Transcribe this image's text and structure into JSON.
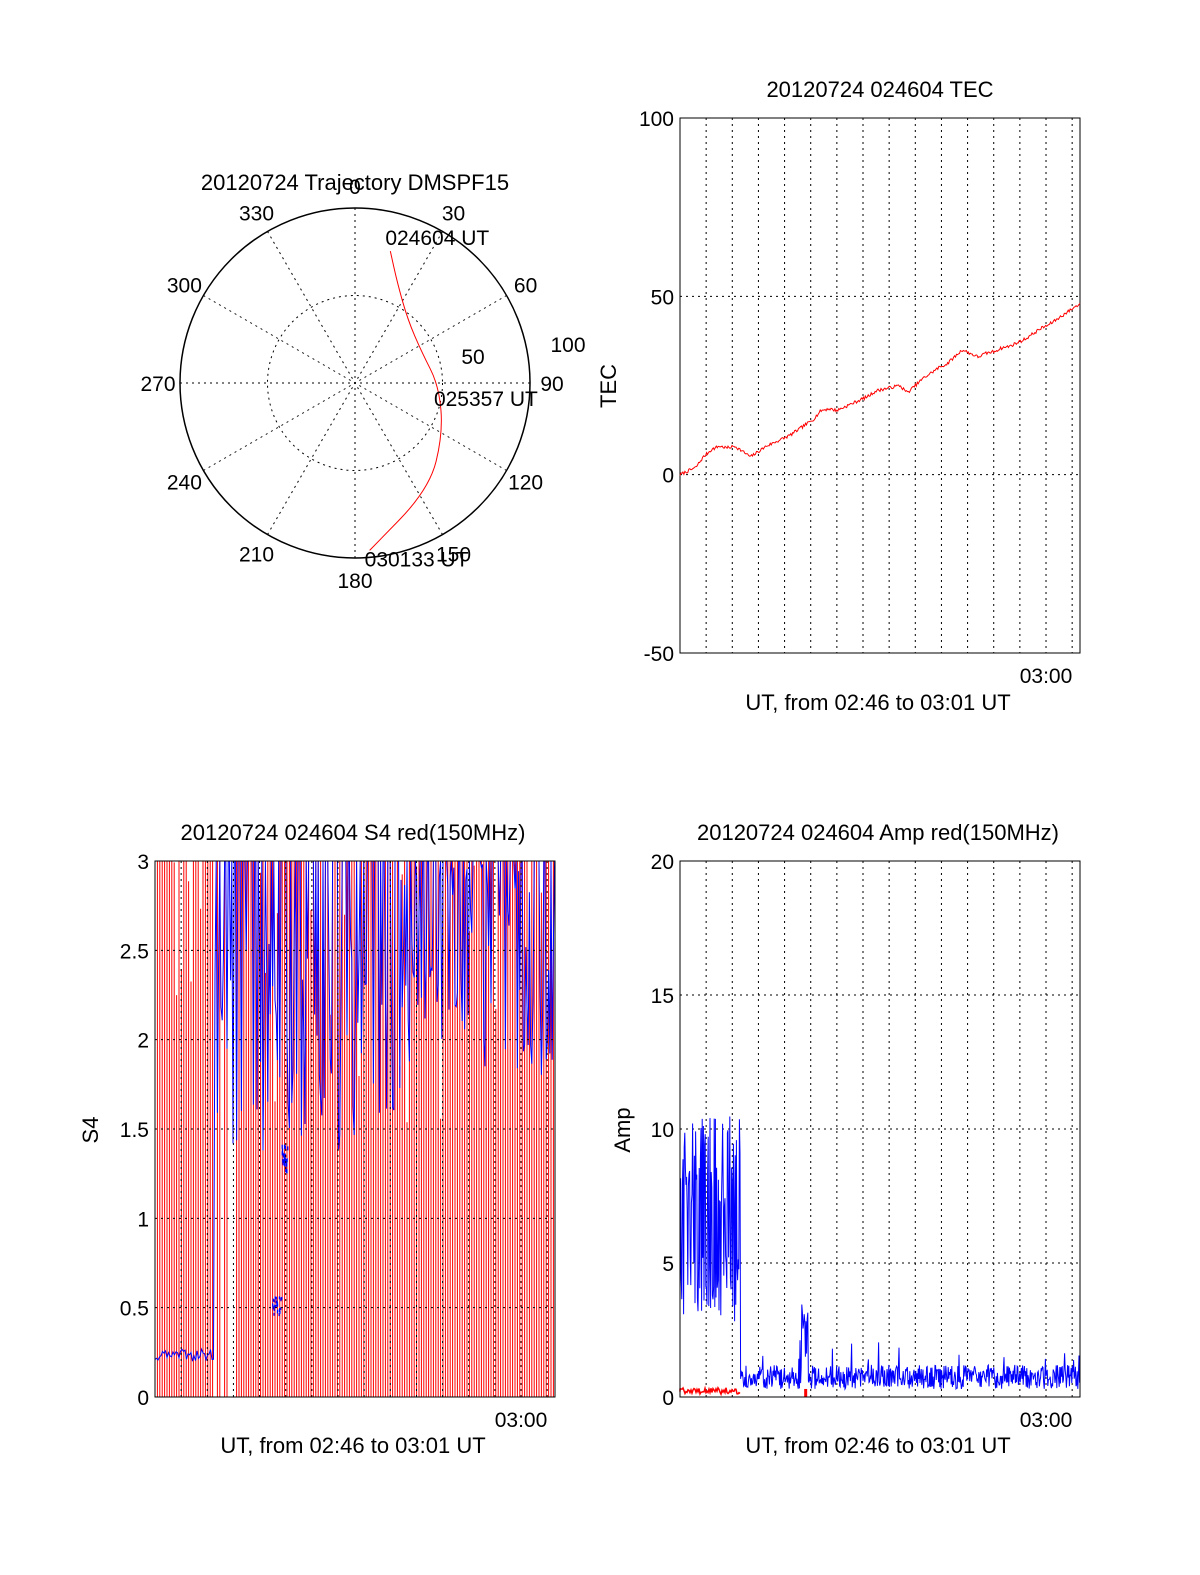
{
  "chart_data": [
    {
      "type": "polar",
      "title": "20120724 Trajectory DMSPF15",
      "angle_labels": [
        "0",
        "30",
        "60",
        "90",
        "120",
        "150",
        "180",
        "210",
        "240",
        "270",
        "300",
        "330"
      ],
      "radius_labels": [
        "50",
        "100"
      ],
      "radius_range": [
        0,
        100
      ],
      "grid": true,
      "series": [
        {
          "color": "#ff0000",
          "points": [
            {
              "az": 15,
              "r": 78,
              "label": "024604 UT"
            },
            {
              "az": 23,
              "r": 62
            },
            {
              "az": 40,
              "r": 47
            },
            {
              "az": 65,
              "r": 42
            },
            {
              "az": 92,
              "r": 48,
              "label": "025357 UT"
            },
            {
              "az": 120,
              "r": 58
            },
            {
              "az": 145,
              "r": 74
            },
            {
              "az": 175,
              "r": 96,
              "label": "030133 UT"
            }
          ]
        }
      ]
    },
    {
      "type": "line",
      "title": "20120724 024604 TEC",
      "xlabel": "UT, from 02:46 to 03:01 UT",
      "ylabel": "TEC",
      "xlim": [
        0,
        15.3
      ],
      "ylim": [
        -50,
        100
      ],
      "yticks": [
        "-50",
        "0",
        "50",
        "100"
      ],
      "xtick_labels": [
        {
          "x": 14,
          "label": "03:00"
        }
      ],
      "grid": true,
      "series": [
        {
          "color": "#ff0000",
          "x": [
            0.0,
            0.3,
            0.6,
            0.9,
            1.2,
            1.5,
            1.8,
            2.1,
            2.4,
            2.7,
            3.0,
            3.3,
            3.6,
            3.9,
            4.2,
            4.5,
            4.8,
            5.1,
            5.4,
            5.7,
            6.0,
            6.3,
            6.6,
            6.9,
            7.2,
            7.5,
            7.8,
            8.1,
            8.4,
            8.7,
            9.0,
            9.3,
            9.6,
            9.9,
            10.2,
            10.5,
            10.8,
            11.1,
            11.4,
            11.7,
            12.0,
            12.3,
            12.6,
            12.9,
            13.2,
            13.5,
            13.8,
            14.1,
            14.4,
            14.7,
            15.0,
            15.3
          ],
          "y": [
            0,
            1,
            2,
            5,
            7,
            8,
            7.5,
            8,
            6.5,
            5,
            6.5,
            8,
            9,
            10,
            11,
            12.5,
            14,
            15.5,
            18,
            18.5,
            18,
            19,
            20,
            21,
            22,
            23.5,
            24,
            24.5,
            25,
            23,
            25,
            27,
            28.5,
            30,
            31,
            33,
            35,
            34,
            33,
            34,
            34.5,
            35.5,
            36,
            37,
            38,
            39.5,
            41,
            42,
            43.5,
            45,
            46.5,
            48
          ]
        }
      ]
    },
    {
      "type": "line",
      "title": "20120724 024604 S4 red(150MHz)",
      "xlabel": "UT, from 02:46 to 03:01 UT",
      "ylabel": "S4",
      "xlim": [
        0,
        15.3
      ],
      "ylim": [
        0,
        3
      ],
      "yticks": [
        "0",
        "0.5",
        "1",
        "1.5",
        "2",
        "2.5",
        "3"
      ],
      "xtick_labels": [
        {
          "x": 14,
          "label": "03:00"
        }
      ],
      "grid": true,
      "series": [
        {
          "color": "#ff0000",
          "description_values": [
            0,
            3
          ]
        },
        {
          "color": "#0000ff",
          "description_values": [
            0.22,
            3
          ]
        }
      ]
    },
    {
      "type": "line",
      "title": "20120724 024604 Amp red(150MHz)",
      "xlabel": "UT, from 02:46 to 03:01 UT",
      "ylabel": "Amp",
      "xlim": [
        0,
        15.3
      ],
      "ylim": [
        0,
        20
      ],
      "yticks": [
        "0",
        "5",
        "10",
        "15",
        "20"
      ],
      "xtick_labels": [
        {
          "x": 14,
          "label": "03:00"
        }
      ],
      "grid": true,
      "series": [
        {
          "color": "#0000ff",
          "x": [
            0.0,
            2.3,
            2.35,
            4.6,
            4.8,
            5.0,
            15.3
          ],
          "y": [
            6.5,
            6.5,
            0.8,
            0.8,
            2.5,
            0.8,
            0.8
          ]
        },
        {
          "color": "#ff0000",
          "x": [
            0.0,
            2.3,
            4.7,
            4.8
          ],
          "y": [
            0.2,
            0.2,
            0.1,
            0.2
          ]
        }
      ]
    }
  ]
}
